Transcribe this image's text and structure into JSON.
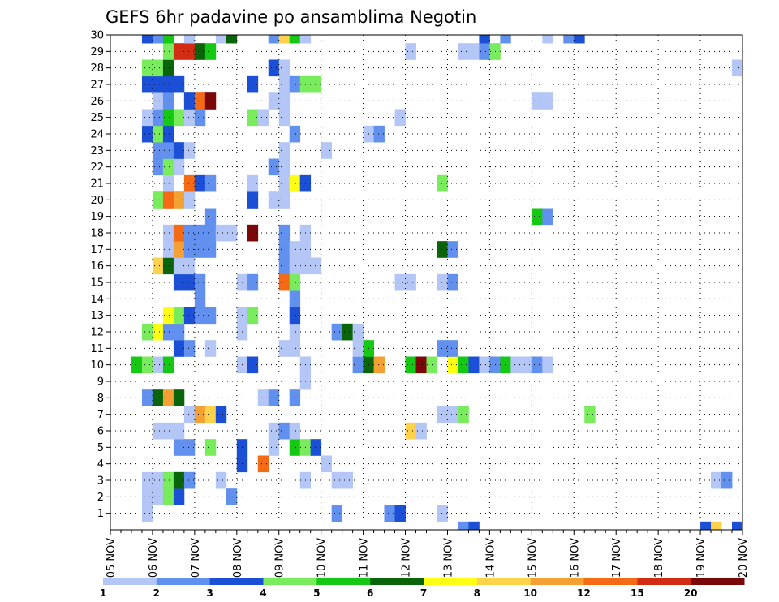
{
  "chart_data": {
    "type": "heatmap",
    "title": "GEFS 6hr padavine po ansamblima Negotin",
    "x_tick_labels": [
      "05 NOV",
      "06 NOV",
      "07 NOV",
      "08 NOV",
      "09 NOV",
      "10 NOV",
      "11 NOV",
      "12 NOV",
      "13 NOV",
      "14 NOV",
      "15 NOV",
      "16 NOV",
      "17 NOV",
      "18 NOV",
      "19 NOV",
      "20 NOV"
    ],
    "y_tick_labels": [
      "1",
      "2",
      "3",
      "4",
      "5",
      "6",
      "7",
      "8",
      "9",
      "10",
      "11",
      "12",
      "13",
      "14",
      "15",
      "16",
      "17",
      "18",
      "19",
      "20",
      "21",
      "22",
      "23",
      "24",
      "25",
      "26",
      "27",
      "28",
      "29",
      "30"
    ],
    "xlim": [
      0,
      60
    ],
    "ylim": [
      0,
      30
    ],
    "colorbar": {
      "labels": [
        "1",
        "2",
        "3",
        "4",
        "5",
        "6",
        "7",
        "8",
        "10",
        "12",
        "15",
        "20"
      ],
      "colors": [
        "#b3c6f5",
        "#6290ee",
        "#1a4fd6",
        "#78ec5c",
        "#14c814",
        "#0a640a",
        "#ffff14",
        "#ffd24b",
        "#f5a032",
        "#f56a14",
        "#d22c14",
        "#7a0808"
      ]
    },
    "level_thresholds": [
      1,
      2,
      3,
      4,
      5,
      6,
      7,
      8,
      10,
      12,
      15,
      20
    ],
    "cells": [
      [
        33,
        0,
        2
      ],
      [
        34,
        0,
        3
      ],
      [
        56,
        0,
        3
      ],
      [
        57,
        0,
        8
      ],
      [
        59,
        0,
        3
      ],
      [
        3,
        1,
        1
      ],
      [
        21,
        1,
        2
      ],
      [
        26,
        1,
        3
      ],
      [
        26,
        1,
        2
      ],
      [
        27,
        1,
        3
      ],
      [
        31,
        1,
        1
      ],
      [
        3,
        2,
        1
      ],
      [
        4,
        2,
        1
      ],
      [
        5,
        2,
        4
      ],
      [
        6,
        2,
        3
      ],
      [
        11,
        2,
        2
      ],
      [
        3,
        3,
        1
      ],
      [
        4,
        3,
        1
      ],
      [
        5,
        3,
        4
      ],
      [
        6,
        3,
        6
      ],
      [
        7,
        3,
        2
      ],
      [
        10,
        3,
        1
      ],
      [
        18,
        3,
        1
      ],
      [
        21,
        3,
        1
      ],
      [
        22,
        3,
        1
      ],
      [
        57,
        3,
        1
      ],
      [
        58,
        3,
        2
      ],
      [
        12,
        4,
        3
      ],
      [
        14,
        4,
        10
      ],
      [
        20,
        4,
        1
      ],
      [
        6,
        5,
        2
      ],
      [
        7,
        5,
        2
      ],
      [
        9,
        5,
        4
      ],
      [
        12,
        5,
        3
      ],
      [
        15,
        5,
        1
      ],
      [
        17,
        5,
        5
      ],
      [
        18,
        5,
        4
      ],
      [
        19,
        5,
        3
      ],
      [
        4,
        6,
        1
      ],
      [
        5,
        6,
        1
      ],
      [
        6,
        6,
        1
      ],
      [
        15,
        6,
        1
      ],
      [
        16,
        6,
        2
      ],
      [
        17,
        6,
        1
      ],
      [
        28,
        6,
        8
      ],
      [
        29,
        6,
        1
      ],
      [
        7,
        7,
        1
      ],
      [
        8,
        7,
        9
      ],
      [
        9,
        7,
        8
      ],
      [
        10,
        7,
        3
      ],
      [
        31,
        7,
        1
      ],
      [
        32,
        7,
        1
      ],
      [
        33,
        7,
        4
      ],
      [
        45,
        7,
        4
      ],
      [
        3,
        8,
        2
      ],
      [
        4,
        8,
        6
      ],
      [
        5,
        8,
        9
      ],
      [
        6,
        8,
        6
      ],
      [
        14,
        8,
        1
      ],
      [
        15,
        8,
        2
      ],
      [
        17,
        8,
        2
      ],
      [
        18,
        9,
        1
      ],
      [
        2,
        10,
        5
      ],
      [
        3,
        10,
        4
      ],
      [
        4,
        10,
        1
      ],
      [
        5,
        10,
        5
      ],
      [
        12,
        10,
        1
      ],
      [
        13,
        10,
        3
      ],
      [
        18,
        10,
        1
      ],
      [
        23,
        10,
        2
      ],
      [
        24,
        10,
        6
      ],
      [
        25,
        10,
        9
      ],
      [
        28,
        10,
        5
      ],
      [
        29,
        10,
        12
      ],
      [
        30,
        10,
        4
      ],
      [
        32,
        10,
        7
      ],
      [
        33,
        10,
        5
      ],
      [
        34,
        10,
        3
      ],
      [
        35,
        10,
        1
      ],
      [
        36,
        10,
        2
      ],
      [
        37,
        10,
        5
      ],
      [
        38,
        10,
        1
      ],
      [
        39,
        10,
        1
      ],
      [
        40,
        10,
        2
      ],
      [
        41,
        10,
        1
      ],
      [
        6,
        11,
        3
      ],
      [
        7,
        11,
        2
      ],
      [
        9,
        11,
        1
      ],
      [
        16,
        11,
        1
      ],
      [
        17,
        11,
        1
      ],
      [
        23,
        11,
        1
      ],
      [
        24,
        11,
        5
      ],
      [
        31,
        11,
        2
      ],
      [
        32,
        11,
        2
      ],
      [
        3,
        12,
        4
      ],
      [
        4,
        12,
        7
      ],
      [
        5,
        12,
        2
      ],
      [
        6,
        12,
        2
      ],
      [
        12,
        12,
        1
      ],
      [
        17,
        12,
        1
      ],
      [
        21,
        12,
        2
      ],
      [
        22,
        12,
        6
      ],
      [
        23,
        12,
        1
      ],
      [
        5,
        13,
        7
      ],
      [
        6,
        13,
        4
      ],
      [
        7,
        13,
        3
      ],
      [
        8,
        13,
        2
      ],
      [
        9,
        13,
        2
      ],
      [
        12,
        13,
        1
      ],
      [
        13,
        13,
        4
      ],
      [
        17,
        13,
        3
      ],
      [
        8,
        14,
        2
      ],
      [
        17,
        14,
        2
      ],
      [
        6,
        15,
        3
      ],
      [
        7,
        15,
        3
      ],
      [
        8,
        15,
        2
      ],
      [
        12,
        15,
        1
      ],
      [
        13,
        15,
        2
      ],
      [
        16,
        15,
        10
      ],
      [
        17,
        15,
        4
      ],
      [
        27,
        15,
        1
      ],
      [
        28,
        15,
        1
      ],
      [
        31,
        15,
        1
      ],
      [
        32,
        15,
        2
      ],
      [
        4,
        16,
        8
      ],
      [
        5,
        16,
        6
      ],
      [
        6,
        16,
        1
      ],
      [
        7,
        16,
        1
      ],
      [
        16,
        16,
        2
      ],
      [
        17,
        16,
        1
      ],
      [
        18,
        16,
        1
      ],
      [
        19,
        16,
        1
      ],
      [
        5,
        17,
        1
      ],
      [
        6,
        17,
        9
      ],
      [
        7,
        17,
        2
      ],
      [
        8,
        17,
        2
      ],
      [
        9,
        17,
        2
      ],
      [
        16,
        17,
        2
      ],
      [
        17,
        17,
        1
      ],
      [
        18,
        17,
        1
      ],
      [
        31,
        17,
        6
      ],
      [
        32,
        17,
        2
      ],
      [
        5,
        18,
        1
      ],
      [
        6,
        18,
        10
      ],
      [
        7,
        18,
        2
      ],
      [
        8,
        18,
        2
      ],
      [
        9,
        18,
        2
      ],
      [
        10,
        18,
        1
      ],
      [
        11,
        18,
        1
      ],
      [
        13,
        18,
        12
      ],
      [
        16,
        18,
        2
      ],
      [
        18,
        18,
        1
      ],
      [
        9,
        19,
        2
      ],
      [
        40,
        19,
        5
      ],
      [
        41,
        19,
        2
      ],
      [
        4,
        20,
        4
      ],
      [
        5,
        20,
        10
      ],
      [
        6,
        20,
        9
      ],
      [
        7,
        20,
        1
      ],
      [
        13,
        20,
        3
      ],
      [
        15,
        20,
        1
      ],
      [
        16,
        20,
        1
      ],
      [
        5,
        21,
        1
      ],
      [
        7,
        21,
        10
      ],
      [
        8,
        21,
        3
      ],
      [
        9,
        21,
        2
      ],
      [
        13,
        21,
        1
      ],
      [
        16,
        21,
        1
      ],
      [
        17,
        21,
        7
      ],
      [
        18,
        21,
        3
      ],
      [
        31,
        21,
        4
      ],
      [
        4,
        22,
        2
      ],
      [
        5,
        22,
        4
      ],
      [
        6,
        22,
        1
      ],
      [
        15,
        22,
        2
      ],
      [
        16,
        22,
        1
      ],
      [
        4,
        23,
        2
      ],
      [
        5,
        23,
        2
      ],
      [
        6,
        23,
        3
      ],
      [
        7,
        23,
        1
      ],
      [
        16,
        23,
        1
      ],
      [
        20,
        23,
        1
      ],
      [
        3,
        24,
        3
      ],
      [
        4,
        24,
        4
      ],
      [
        5,
        24,
        3
      ],
      [
        17,
        24,
        2
      ],
      [
        24,
        24,
        1
      ],
      [
        25,
        24,
        2
      ],
      [
        3,
        25,
        1
      ],
      [
        4,
        25,
        2
      ],
      [
        5,
        25,
        5
      ],
      [
        6,
        25,
        4
      ],
      [
        7,
        25,
        1
      ],
      [
        8,
        25,
        2
      ],
      [
        13,
        25,
        4
      ],
      [
        14,
        25,
        1
      ],
      [
        16,
        25,
        1
      ],
      [
        27,
        25,
        1
      ],
      [
        4,
        26,
        1
      ],
      [
        5,
        26,
        2
      ],
      [
        7,
        26,
        3
      ],
      [
        8,
        26,
        10
      ],
      [
        9,
        26,
        12
      ],
      [
        15,
        26,
        1
      ],
      [
        16,
        26,
        1
      ],
      [
        40,
        26,
        1
      ],
      [
        41,
        26,
        1
      ],
      [
        3,
        27,
        3
      ],
      [
        4,
        27,
        3
      ],
      [
        5,
        27,
        3
      ],
      [
        6,
        27,
        3
      ],
      [
        13,
        27,
        3
      ],
      [
        16,
        27,
        1
      ],
      [
        17,
        27,
        2
      ],
      [
        18,
        27,
        4
      ],
      [
        19,
        27,
        4
      ],
      [
        3,
        28,
        4
      ],
      [
        4,
        28,
        4
      ],
      [
        5,
        28,
        6
      ],
      [
        15,
        28,
        3
      ],
      [
        16,
        28,
        1
      ],
      [
        59,
        28,
        1
      ],
      [
        5,
        29,
        4
      ],
      [
        6,
        29,
        11
      ],
      [
        7,
        29,
        11
      ],
      [
        8,
        29,
        6
      ],
      [
        9,
        29,
        5
      ],
      [
        28,
        29,
        1
      ],
      [
        33,
        29,
        1
      ],
      [
        34,
        29,
        1
      ],
      [
        35,
        29,
        2
      ],
      [
        36,
        29,
        4
      ],
      [
        3,
        30,
        3
      ],
      [
        4,
        30,
        2
      ],
      [
        5,
        30,
        5
      ],
      [
        7,
        30,
        1
      ],
      [
        10,
        30,
        1
      ],
      [
        11,
        30,
        6
      ],
      [
        15,
        30,
        2
      ],
      [
        16,
        30,
        8
      ],
      [
        17,
        30,
        5
      ],
      [
        18,
        30,
        1
      ],
      [
        35,
        30,
        3
      ],
      [
        37,
        30,
        2
      ],
      [
        41,
        30,
        1
      ],
      [
        43,
        30,
        2
      ],
      [
        44,
        30,
        3
      ]
    ]
  }
}
